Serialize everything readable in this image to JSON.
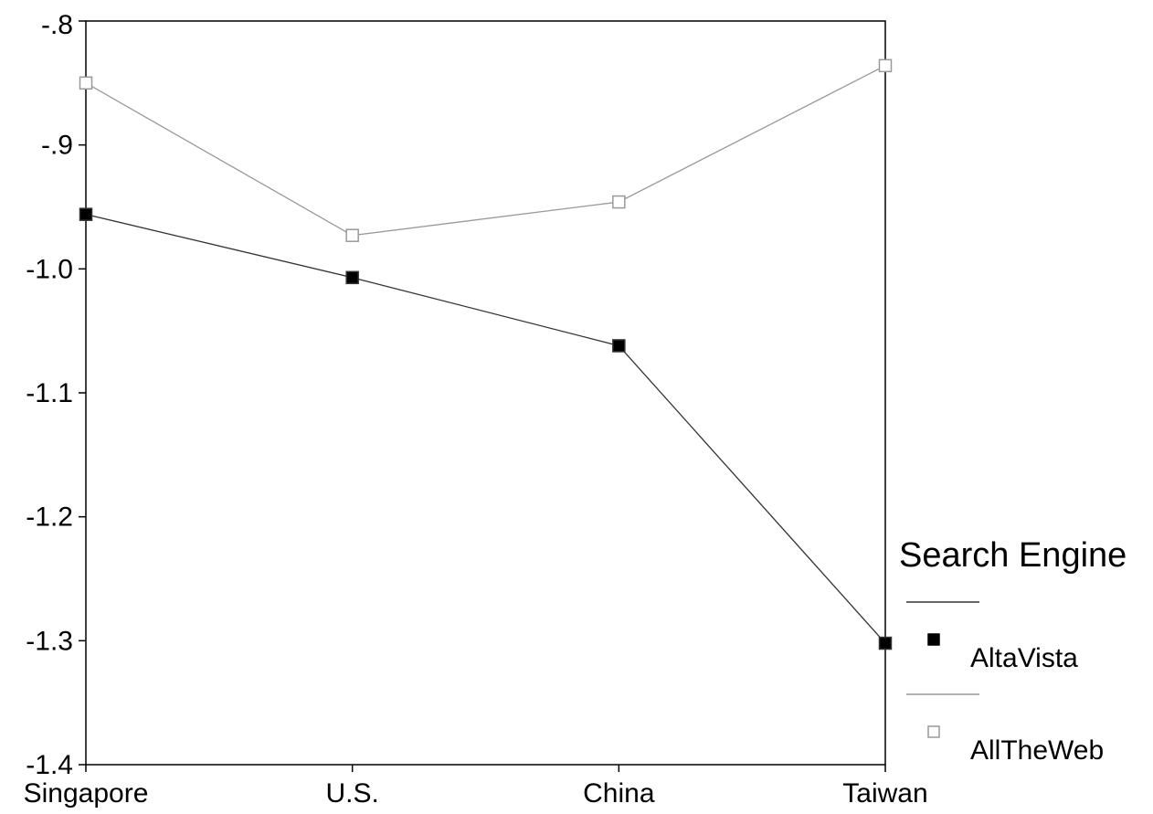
{
  "chart_data": {
    "type": "line",
    "categories": [
      "Singapore",
      "U.S.",
      "China",
      "Taiwan"
    ],
    "ylim": [
      -1.4,
      -0.8
    ],
    "yticks": [
      {
        "value": -0.8,
        "label": "-.8"
      },
      {
        "value": -0.9,
        "label": "-.9"
      },
      {
        "value": -1.0,
        "label": "-1.0"
      },
      {
        "value": -1.1,
        "label": "-1.1"
      },
      {
        "value": -1.2,
        "label": "-1.2"
      },
      {
        "value": -1.3,
        "label": "-1.3"
      },
      {
        "value": -1.4,
        "label": "-1.4"
      }
    ],
    "grid": false,
    "legend_title": "Search Engine",
    "legend_position": "right",
    "series": [
      {
        "name": "AltaVista",
        "values": [
          -0.956,
          -1.007,
          -1.062,
          -1.302
        ],
        "line_color": "#333333",
        "marker": "filled-square",
        "marker_color": "#000000"
      },
      {
        "name": "AllTheWeb",
        "values": [
          -0.85,
          -0.973,
          -0.946,
          -0.836
        ],
        "line_color": "#999999",
        "marker": "hollow-square",
        "marker_color": "#999999"
      }
    ]
  }
}
